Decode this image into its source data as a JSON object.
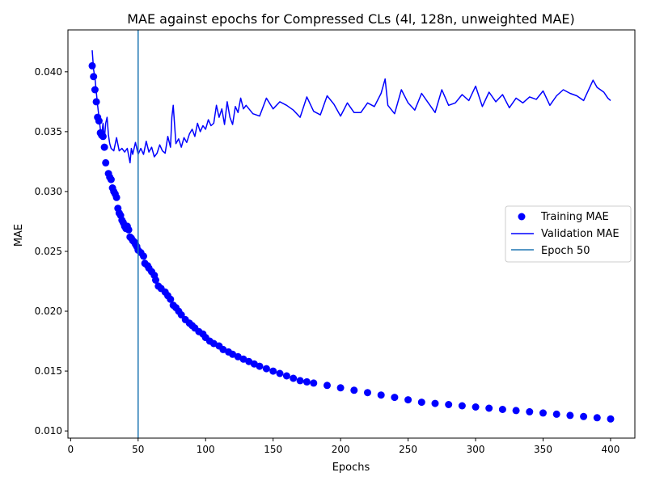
{
  "chart_data": {
    "type": "line",
    "title": "MAE against epochs for Compressed CLs (4l, 128n, unweighted MAE)",
    "xlabel": "Epochs",
    "ylabel": "MAE",
    "xlim": [
      -2,
      418
    ],
    "ylim": [
      0.0094,
      0.0435
    ],
    "xticks": [
      0,
      50,
      100,
      150,
      200,
      250,
      300,
      350,
      400
    ],
    "yticks": [
      0.01,
      0.015,
      0.02,
      0.025,
      0.03,
      0.035,
      0.04
    ],
    "ytick_labels": [
      "0.010",
      "0.015",
      "0.020",
      "0.025",
      "0.030",
      "0.035",
      "0.040"
    ],
    "grid": false,
    "legend": {
      "position": "center-right",
      "entries": [
        "Training MAE",
        "Validation MAE",
        "Epoch 50"
      ]
    },
    "series": [
      {
        "name": "Training MAE",
        "kind": "markers",
        "color": "#0000ff",
        "x": [
          16,
          17,
          18,
          19,
          20,
          21,
          22,
          23,
          24,
          25,
          26,
          28,
          29,
          30,
          31,
          32,
          33,
          34,
          35,
          36,
          37,
          38,
          39,
          40,
          41,
          42,
          43,
          44,
          45,
          46,
          47,
          48,
          49,
          50,
          52,
          54,
          55,
          57,
          58,
          60,
          62,
          63,
          65,
          67,
          70,
          72,
          74,
          76,
          78,
          80,
          82,
          85,
          88,
          90,
          92,
          95,
          98,
          100,
          103,
          106,
          110,
          113,
          117,
          120,
          124,
          128,
          132,
          136,
          140,
          145,
          150,
          155,
          160,
          165,
          170,
          175,
          180,
          190,
          200,
          210,
          220,
          230,
          240,
          250,
          260,
          270,
          280,
          290,
          300,
          310,
          320,
          330,
          340,
          350,
          360,
          370,
          380,
          390,
          400
        ],
        "y": [
          0.0405,
          0.0396,
          0.0385,
          0.0375,
          0.0362,
          0.0359,
          0.0349,
          0.0347,
          0.0346,
          0.0337,
          0.0324,
          0.0315,
          0.0312,
          0.031,
          0.0303,
          0.03,
          0.0298,
          0.0295,
          0.0286,
          0.0282,
          0.028,
          0.0276,
          0.0274,
          0.0271,
          0.0269,
          0.0271,
          0.0268,
          0.0262,
          0.0261,
          0.0259,
          0.0258,
          0.0256,
          0.0254,
          0.0251,
          0.0249,
          0.0246,
          0.024,
          0.0238,
          0.0236,
          0.0233,
          0.023,
          0.0226,
          0.0221,
          0.0219,
          0.0216,
          0.0213,
          0.021,
          0.0205,
          0.0203,
          0.02,
          0.0197,
          0.0193,
          0.019,
          0.0188,
          0.0186,
          0.0183,
          0.0181,
          0.0178,
          0.0175,
          0.0173,
          0.0171,
          0.0168,
          0.0166,
          0.0164,
          0.0162,
          0.016,
          0.0158,
          0.0156,
          0.0154,
          0.0152,
          0.015,
          0.0148,
          0.0146,
          0.0144,
          0.0142,
          0.0141,
          0.014,
          0.0138,
          0.0136,
          0.0134,
          0.0132,
          0.013,
          0.0128,
          0.0126,
          0.0124,
          0.0123,
          0.0122,
          0.0121,
          0.012,
          0.0119,
          0.0118,
          0.0117,
          0.0116,
          0.0115,
          0.0114,
          0.0113,
          0.0112,
          0.0111,
          0.011
        ]
      },
      {
        "name": "Validation MAE",
        "kind": "line",
        "color": "#0000ff",
        "x": [
          16,
          17,
          18,
          19,
          20,
          21,
          22,
          23,
          24,
          25,
          26,
          27,
          28,
          29,
          30,
          32,
          34,
          36,
          38,
          40,
          42,
          44,
          45,
          46,
          48,
          50,
          52,
          54,
          56,
          58,
          60,
          62,
          64,
          66,
          68,
          70,
          72,
          74,
          75,
          76,
          78,
          80,
          82,
          84,
          86,
          88,
          90,
          92,
          94,
          96,
          98,
          100,
          102,
          104,
          106,
          108,
          110,
          112,
          114,
          116,
          118,
          120,
          122,
          124,
          126,
          128,
          130,
          135,
          140,
          145,
          150,
          155,
          160,
          165,
          170,
          175,
          180,
          185,
          190,
          195,
          200,
          205,
          210,
          215,
          220,
          225,
          230,
          233,
          235,
          240,
          245,
          250,
          255,
          260,
          265,
          270,
          275,
          280,
          285,
          290,
          295,
          300,
          305,
          310,
          315,
          320,
          325,
          330,
          335,
          340,
          345,
          350,
          355,
          360,
          365,
          370,
          375,
          380,
          385,
          387,
          390,
          395,
          398,
          400
        ],
        "y": [
          0.0418,
          0.0402,
          0.0395,
          0.0383,
          0.0372,
          0.0362,
          0.0352,
          0.0347,
          0.0357,
          0.0344,
          0.0357,
          0.0362,
          0.0347,
          0.034,
          0.0336,
          0.0334,
          0.0345,
          0.0334,
          0.0336,
          0.0333,
          0.0336,
          0.0324,
          0.0336,
          0.0331,
          0.0341,
          0.0331,
          0.0336,
          0.0331,
          0.0342,
          0.0333,
          0.0337,
          0.0329,
          0.0332,
          0.0339,
          0.0334,
          0.0332,
          0.0346,
          0.0337,
          0.0362,
          0.0372,
          0.034,
          0.0344,
          0.0337,
          0.0345,
          0.0341,
          0.0348,
          0.0352,
          0.0346,
          0.0357,
          0.035,
          0.0355,
          0.0352,
          0.036,
          0.0355,
          0.0357,
          0.0372,
          0.0362,
          0.0369,
          0.0356,
          0.0375,
          0.0362,
          0.0356,
          0.0371,
          0.0366,
          0.0378,
          0.0369,
          0.0372,
          0.0365,
          0.0363,
          0.0378,
          0.0369,
          0.0375,
          0.0372,
          0.0368,
          0.0362,
          0.0379,
          0.0367,
          0.0364,
          0.038,
          0.0373,
          0.0363,
          0.0374,
          0.0366,
          0.0366,
          0.0374,
          0.0371,
          0.0382,
          0.0394,
          0.0372,
          0.0365,
          0.0385,
          0.0374,
          0.0368,
          0.0382,
          0.0374,
          0.0366,
          0.0385,
          0.0372,
          0.0374,
          0.0381,
          0.0376,
          0.0388,
          0.0371,
          0.0383,
          0.0375,
          0.0381,
          0.037,
          0.0378,
          0.0374,
          0.0379,
          0.0377,
          0.0384,
          0.0372,
          0.038,
          0.0385,
          0.0382,
          0.038,
          0.0376,
          0.0388,
          0.0393,
          0.0387,
          0.0383,
          0.0378,
          0.0376
        ]
      }
    ],
    "vline": {
      "name": "Epoch 50",
      "x": 50,
      "color": "#1f77b4"
    }
  }
}
